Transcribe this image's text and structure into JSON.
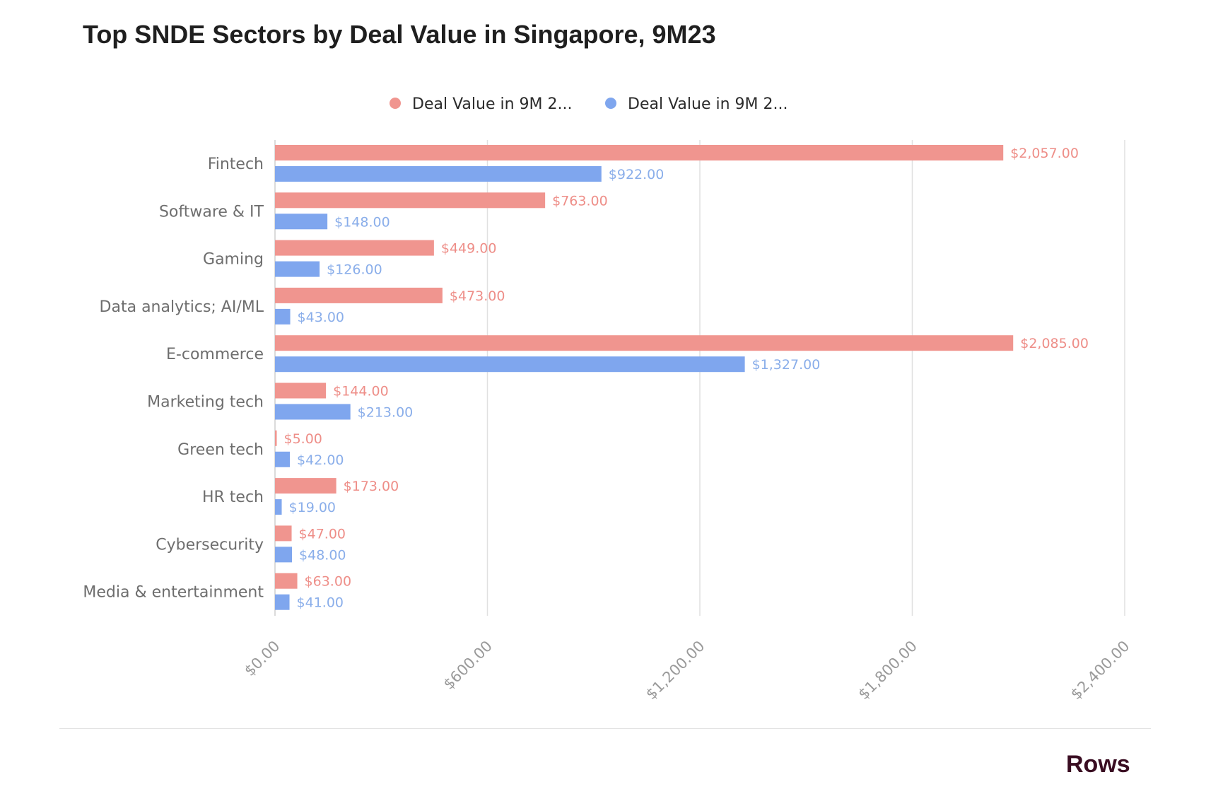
{
  "title": "Top SNDE Sectors by Deal Value in Singapore, 9M23",
  "brand": "Rows",
  "chart_data": {
    "type": "bar",
    "orientation": "horizontal",
    "title": "Top SNDE Sectors by Deal Value in Singapore, 9M23",
    "categories": [
      "Fintech",
      "Software & IT",
      "Gaming",
      "Data analytics; AI/ML",
      "E-commerce",
      "Marketing tech",
      "Green tech",
      "HR tech",
      "Cybersecurity",
      "Media & entertainment"
    ],
    "series": [
      {
        "name": "Deal Value in 9M 2...",
        "color": "#f0958f",
        "label_color": "#ee8e88",
        "values": [
          2057,
          763,
          449,
          473,
          2085,
          144,
          5,
          173,
          47,
          63
        ],
        "labels": [
          "$2,057.00",
          "$763.00",
          "$449.00",
          "$473.00",
          "$2,085.00",
          "$144.00",
          "$5.00",
          "$173.00",
          "$47.00",
          "$63.00"
        ]
      },
      {
        "name": "Deal Value in 9M 2...",
        "color": "#7fa6ee",
        "label_color": "#8aaeea",
        "values": [
          922,
          148,
          126,
          43,
          1327,
          213,
          42,
          19,
          48,
          41
        ],
        "labels": [
          "$922.00",
          "$148.00",
          "$126.00",
          "$43.00",
          "$1,327.00",
          "$213.00",
          "$42.00",
          "$19.00",
          "$48.00",
          "$41.00"
        ]
      }
    ],
    "xlim": [
      0,
      2400
    ],
    "x_ticks": [
      0,
      600,
      1200,
      1800,
      2400
    ],
    "x_tick_labels": [
      "$0.00",
      "$600.00",
      "$1,200.00",
      "$1,800.00",
      "$2,400.00"
    ],
    "grid": true,
    "legend": "top-center",
    "gridline_color": "#e0e0e0"
  }
}
